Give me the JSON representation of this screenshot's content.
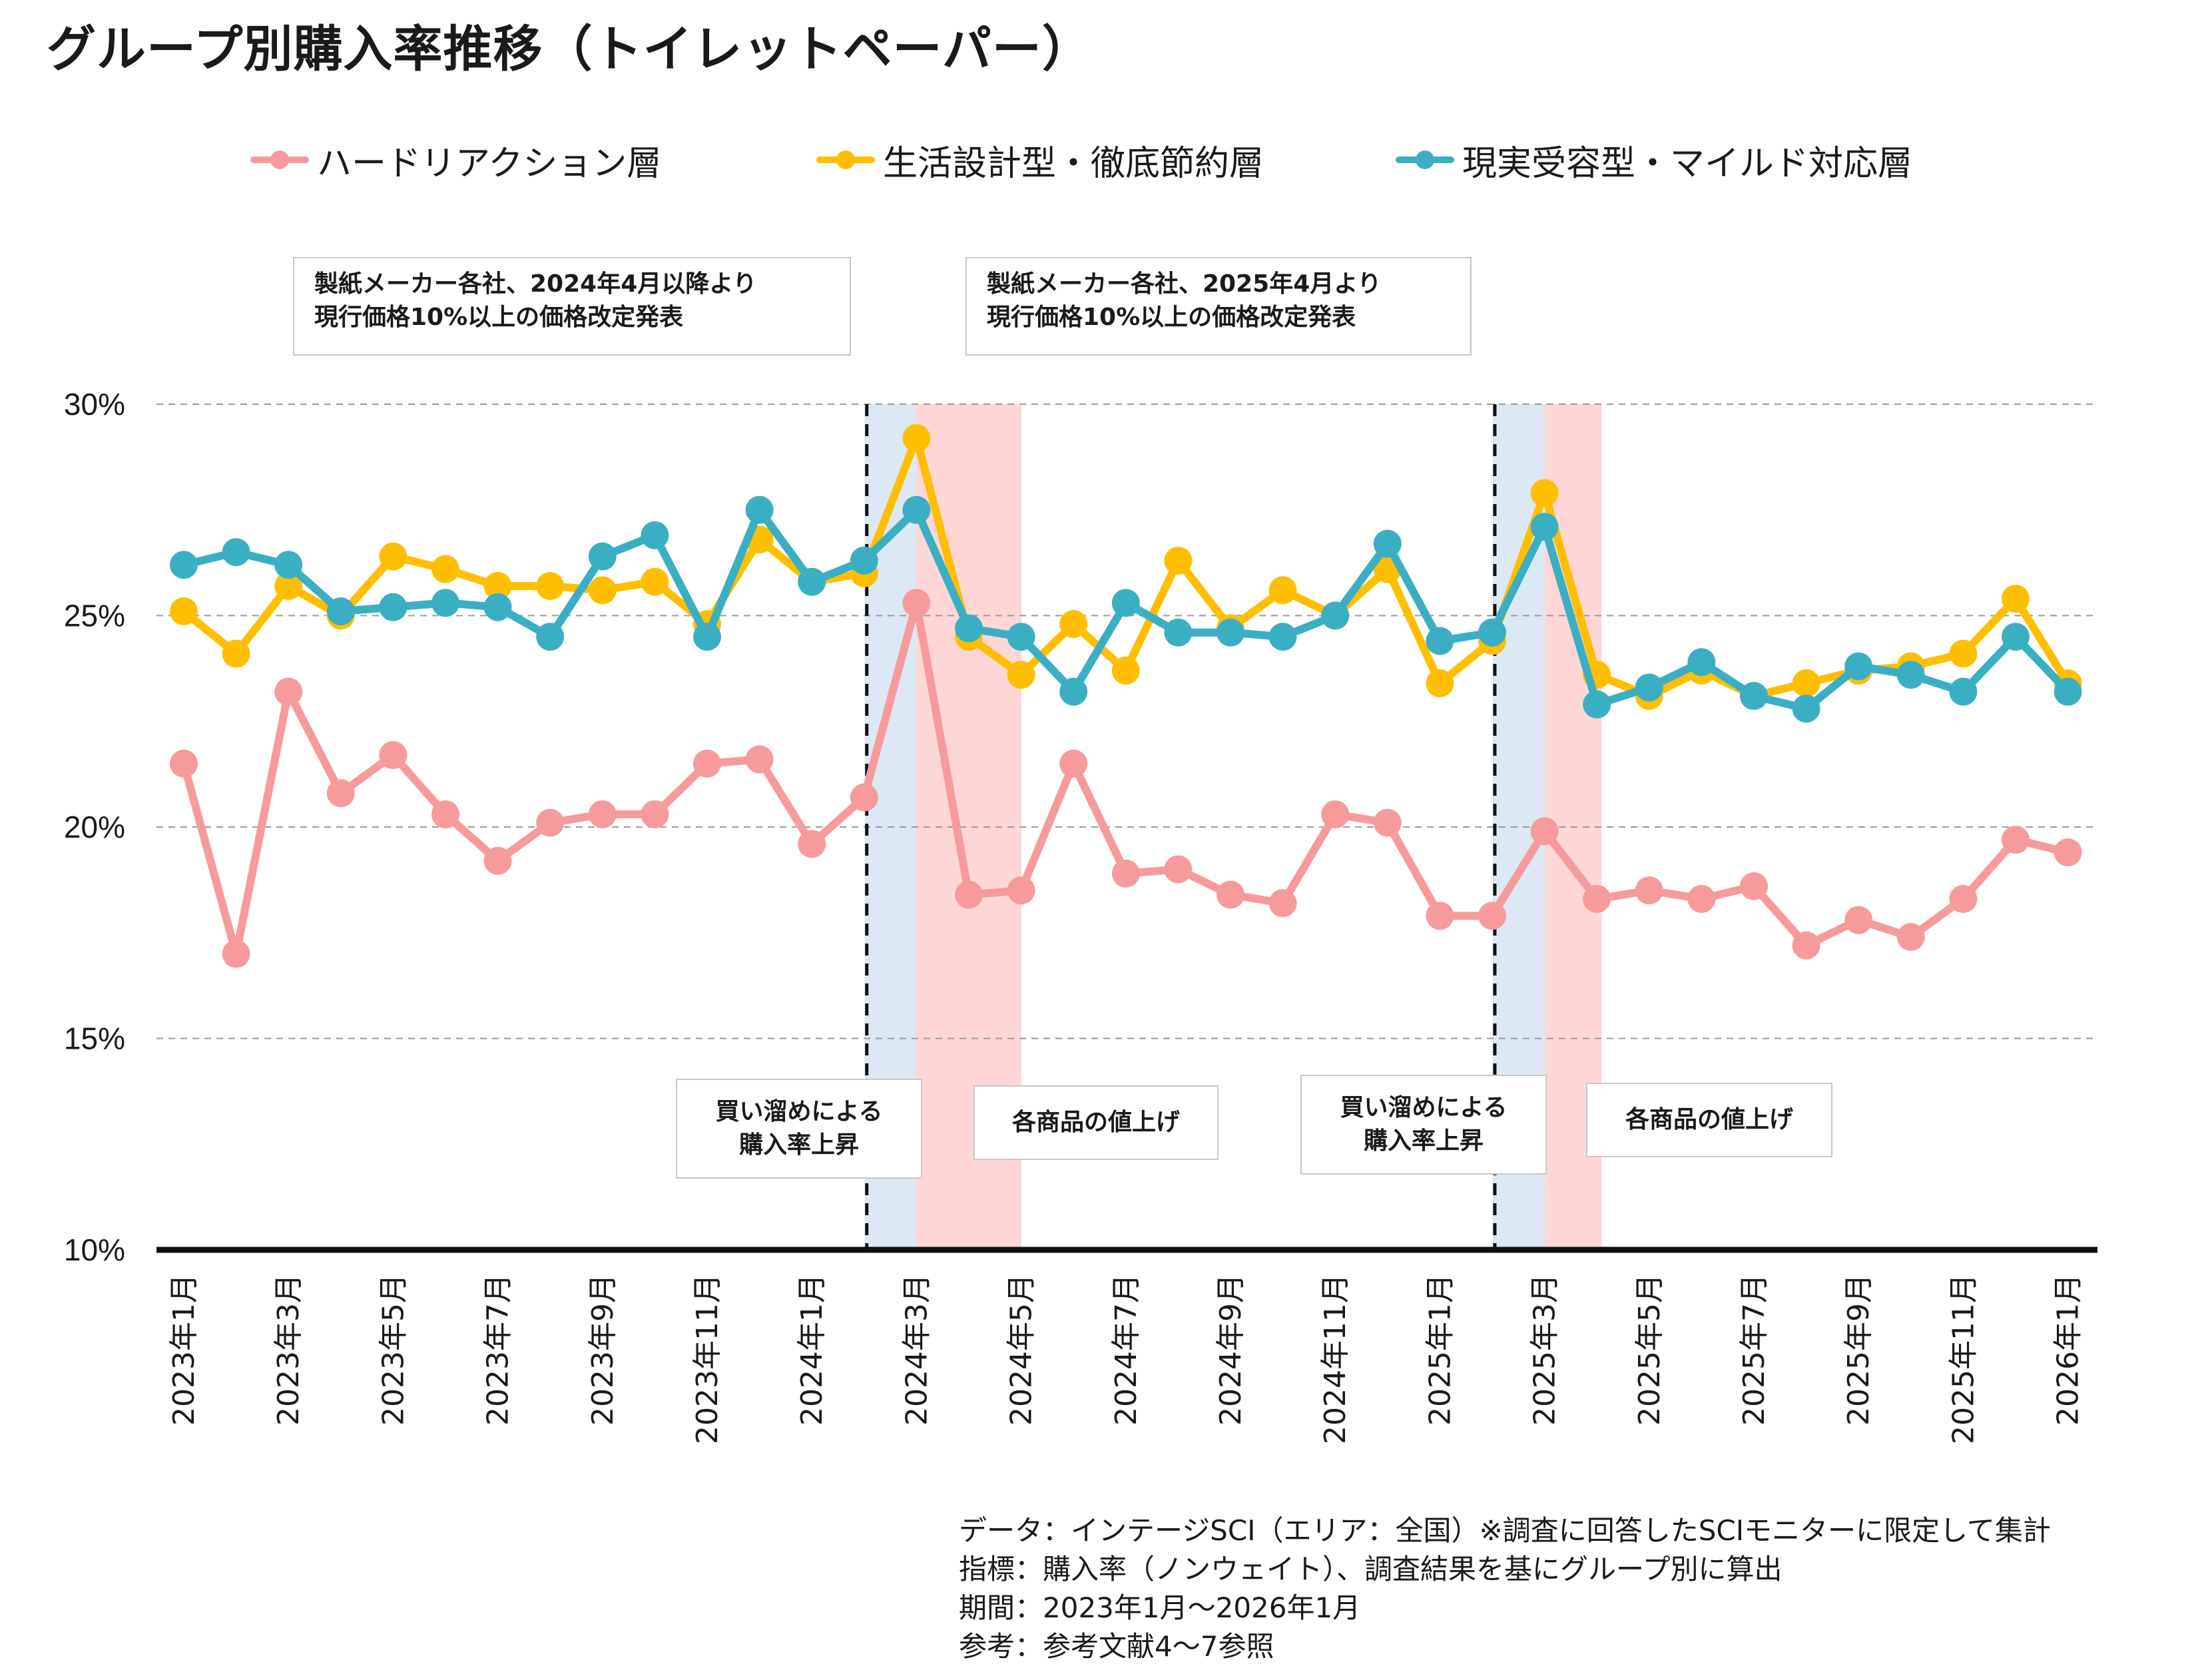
{
  "title": "グループ別購入率推移（トイレットペーパー）",
  "legend": [
    {
      "label": "ハードリアクション層",
      "color": "#F79A9C"
    },
    {
      "label": "生活設計型・徹底節約層",
      "color": "#FFBF00"
    },
    {
      "label": "現実受容型・マイルド対応層",
      "color": "#3AAFC4"
    }
  ],
  "annotations": {
    "announce_2024": {
      "line1": "製紙メーカー各社、2024年4月以降より",
      "line2": "現行価格10%以上の価格改定発表"
    },
    "announce_2025": {
      "line1": "製紙メーカー各社、2025年4月より",
      "line2": "現行価格10%以上の価格改定発表"
    },
    "stockup_2024": {
      "line1": "買い溜めによる",
      "line2": "購入率上昇"
    },
    "priceup_2024": {
      "line1": "各商品の値上げ"
    },
    "stockup_2025": {
      "line1": "買い溜めによる",
      "line2": "購入率上昇"
    },
    "priceup_2025": {
      "line1": "各商品の値上げ"
    }
  },
  "footnotes": [
    "データ：インテージSCI（エリア：全国）※調査に回答したSCIモニターに限定して集計",
    "指標：購入率（ノンウェイト）、調査結果を基にグループ別に算出",
    "期間：2023年1月〜2026年1月",
    "参考：参考文献4〜7参照"
  ],
  "colors": {
    "stockup_band": "#DCE8F3",
    "priceup_band": "#FFD6D6",
    "grid": "#9a9a9a",
    "axis": "#111111"
  },
  "chart_data": {
    "type": "line",
    "title": "グループ別購入率推移（トイレットペーパー）",
    "ylim": [
      10,
      30
    ],
    "yticks": [
      10,
      15,
      20,
      25,
      30
    ],
    "ytick_labels": [
      "10%",
      "15%",
      "20%",
      "25%",
      "30%"
    ],
    "grid": "horizontal dashed",
    "legend_position": "top",
    "x": [
      "2023年1月",
      "2023年2月",
      "2023年3月",
      "2023年4月",
      "2023年5月",
      "2023年6月",
      "2023年7月",
      "2023年8月",
      "2023年9月",
      "2023年10月",
      "2023年11月",
      "2023年12月",
      "2024年1月",
      "2024年2月",
      "2024年3月",
      "2024年4月",
      "2024年5月",
      "2024年6月",
      "2024年7月",
      "2024年8月",
      "2024年9月",
      "2024年10月",
      "2024年11月",
      "2024年12月",
      "2025年1月",
      "2025年2月",
      "2025年3月",
      "2025年4月",
      "2025年5月",
      "2025年6月",
      "2025年7月",
      "2025年8月",
      "2025年9月",
      "2025年10月",
      "2025年11月",
      "2025年12月",
      "2026年1月"
    ],
    "xtick_labels": [
      "2023年1月",
      "2023年3月",
      "2023年5月",
      "2023年7月",
      "2023年9月",
      "2023年11月",
      "2024年1月",
      "2024年3月",
      "2024年5月",
      "2024年7月",
      "2024年9月",
      "2024年11月",
      "2025年1月",
      "2025年3月",
      "2025年5月",
      "2025年7月",
      "2025年9月",
      "2025年11月",
      "2026年1月"
    ],
    "series": [
      {
        "name": "ハードリアクション層",
        "values": [
          21.5,
          17.0,
          23.2,
          20.8,
          21.7,
          20.3,
          19.2,
          20.1,
          20.3,
          20.3,
          21.5,
          21.6,
          19.6,
          20.7,
          25.3,
          18.4,
          18.5,
          21.5,
          18.9,
          19.0,
          18.4,
          18.2,
          20.3,
          20.1,
          17.9,
          17.9,
          19.9,
          18.3,
          18.5,
          18.3,
          18.6,
          17.2,
          17.8,
          17.4,
          18.3,
          19.7,
          19.4
        ]
      },
      {
        "name": "生活設計型・徹底節約層",
        "values": [
          25.1,
          24.1,
          25.7,
          25.0,
          26.4,
          26.1,
          25.7,
          25.7,
          25.6,
          25.8,
          24.8,
          26.8,
          25.8,
          26.0,
          29.2,
          24.5,
          23.6,
          24.8,
          23.7,
          26.3,
          24.7,
          25.6,
          25.0,
          26.1,
          23.4,
          24.4,
          27.9,
          23.6,
          23.1,
          23.7,
          23.1,
          23.4,
          23.7,
          23.8,
          24.1,
          25.4,
          23.4
        ]
      },
      {
        "name": "現実受容型・マイルド対応層",
        "values": [
          26.2,
          26.5,
          26.2,
          25.1,
          25.2,
          25.3,
          25.2,
          24.5,
          26.4,
          26.9,
          24.5,
          27.5,
          25.8,
          26.3,
          27.5,
          24.7,
          24.5,
          23.2,
          25.3,
          24.6,
          24.6,
          24.5,
          25.0,
          26.7,
          24.4,
          24.6,
          27.1,
          22.9,
          23.3,
          23.9,
          23.1,
          22.8,
          23.8,
          23.6,
          23.2,
          24.5,
          23.2
        ]
      }
    ],
    "vertical_markers": [
      "2024年2月〜3月の間",
      "2025年2月〜3月の間"
    ],
    "shaded_periods": [
      {
        "label": "買い溜めによる購入率上昇",
        "period": "2024年3月"
      },
      {
        "label": "各商品の値上げ",
        "period": "2024年4月〜5月"
      },
      {
        "label": "買い溜めによる購入率上昇",
        "period": "2025年3月"
      },
      {
        "label": "各商品の値上げ",
        "period": "2025年4月"
      }
    ]
  }
}
